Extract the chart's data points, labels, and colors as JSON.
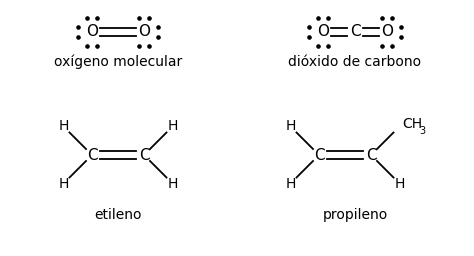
{
  "bg_color": "#ffffff",
  "text_color": "#000000",
  "figsize": [
    4.74,
    2.56
  ],
  "dpi": 100,
  "o2_label": "oxígeno molecular",
  "co2_label": "dióxido de carbono",
  "eth_label": "etileno",
  "pro_label": "propileno"
}
